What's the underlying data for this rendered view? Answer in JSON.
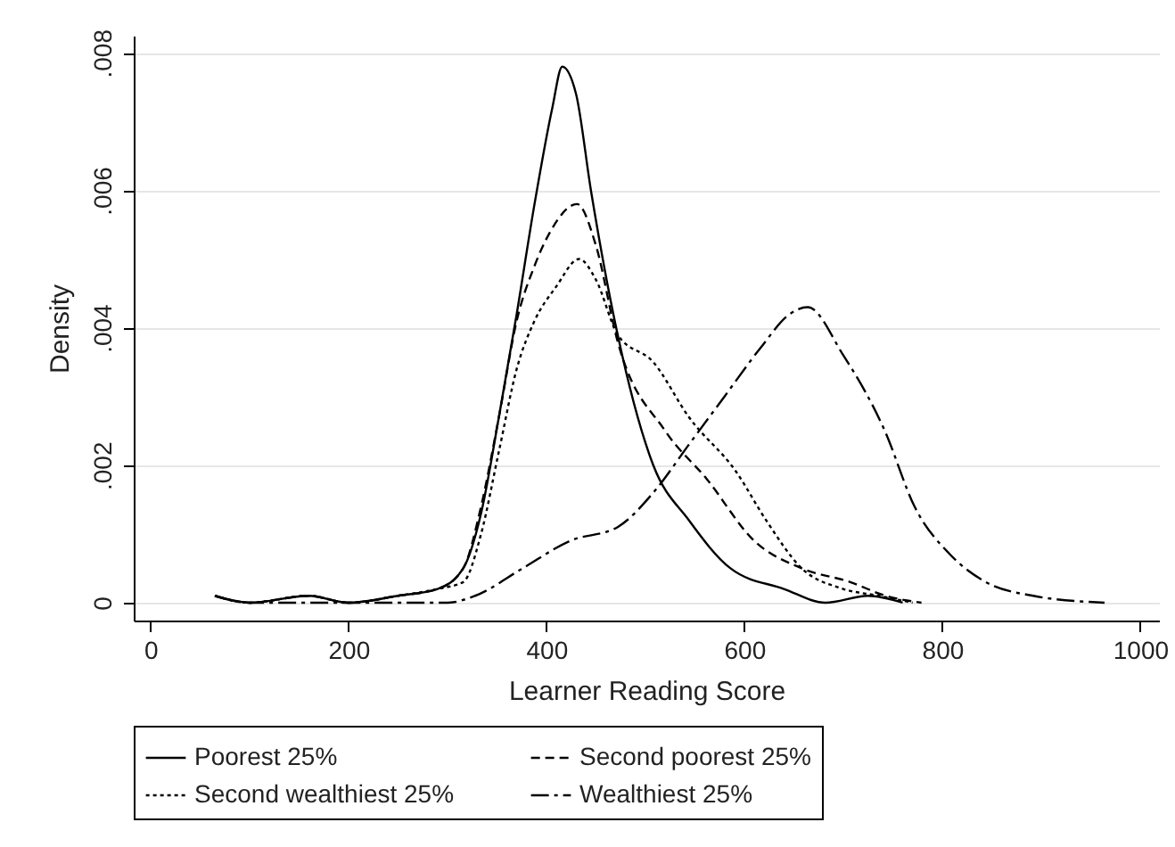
{
  "chart_data": {
    "type": "line",
    "xlabel": "Learner Reading Score",
    "ylabel": "Density",
    "xlim": [
      -17,
      1019
    ],
    "xticks": [
      0,
      200,
      400,
      600,
      800,
      1000
    ],
    "ylim": [
      -0.00026,
      0.00825
    ],
    "yticks": [
      {
        "value": 0,
        "label": "0"
      },
      {
        "value": 0.002,
        "label": ".002"
      },
      {
        "value": 0.004,
        "label": ".004"
      },
      {
        "value": 0.006,
        "label": ".006"
      },
      {
        "value": 0.008,
        "label": ".008"
      }
    ],
    "grid": "y",
    "legend": "bottom",
    "series": [
      {
        "name": "Poorest 25%",
        "color": "#000000",
        "line_style": "solid",
        "x": [
          65,
          100,
          160,
          200,
          250,
          290,
          316,
          334,
          352,
          370,
          388,
          406,
          416,
          430,
          445,
          472,
          508,
          544,
          586,
          640,
          682,
          725,
          760
        ],
        "values": [
          0.0001,
          0,
          0.0001,
          0,
          0.0001,
          0.0002,
          0.0005,
          0.0013,
          0.0027,
          0.0042,
          0.0058,
          0.0072,
          0.0078,
          0.0074,
          0.006,
          0.0039,
          0.002,
          0.0012,
          0.0005,
          0.0002,
          0,
          0.0001,
          0
        ]
      },
      {
        "name": "Second poorest 25%",
        "color": "#000000",
        "line_style": "dashed",
        "x": [
          65,
          100,
          160,
          200,
          250,
          290,
          316,
          334,
          352,
          370,
          388,
          404,
          431,
          450,
          472,
          520,
          562,
          610,
          658,
          707,
          743,
          779
        ],
        "values": [
          0.0001,
          0,
          0.0001,
          0,
          0.0001,
          0.0002,
          0.0005,
          0.0014,
          0.0027,
          0.0041,
          0.0049,
          0.0054,
          0.0058,
          0.0052,
          0.0038,
          0.0025,
          0.0018,
          0.0009,
          0.0005,
          0.0003,
          0.0001,
          0
        ]
      },
      {
        "name": "Second wealthiest 25%",
        "color": "#000000",
        "line_style": "dotted",
        "x": [
          65,
          100,
          160,
          200,
          250,
          290,
          316,
          334,
          352,
          370,
          388,
          410,
          433,
          450,
          472,
          508,
          544,
          592,
          622,
          658,
          700,
          736,
          770
        ],
        "values": [
          0.0001,
          0,
          0.0001,
          0,
          0.0001,
          0.0002,
          0.0003,
          0.001,
          0.0022,
          0.0034,
          0.0041,
          0.0046,
          0.005,
          0.0047,
          0.0039,
          0.0035,
          0.0027,
          0.0019,
          0.0012,
          0.0005,
          0.0002,
          0.0001,
          0
        ]
      },
      {
        "name": "Wealthiest 25%",
        "color": "#000000",
        "line_style": "dashdot",
        "x": [
          65,
          100,
          200,
          300,
          328,
          376,
          424,
          472,
          508,
          544,
          580,
          616,
          646,
          664,
          700,
          742,
          772,
          808,
          844,
          892,
          964
        ],
        "values": [
          0.0001,
          0,
          0,
          0,
          0.0001,
          0.0005,
          0.0009,
          0.0011,
          0.0016,
          0.0023,
          0.003,
          0.0037,
          0.0042,
          0.0043,
          0.0036,
          0.0025,
          0.0014,
          0.0007,
          0.0003,
          0.0001,
          0
        ]
      }
    ]
  }
}
